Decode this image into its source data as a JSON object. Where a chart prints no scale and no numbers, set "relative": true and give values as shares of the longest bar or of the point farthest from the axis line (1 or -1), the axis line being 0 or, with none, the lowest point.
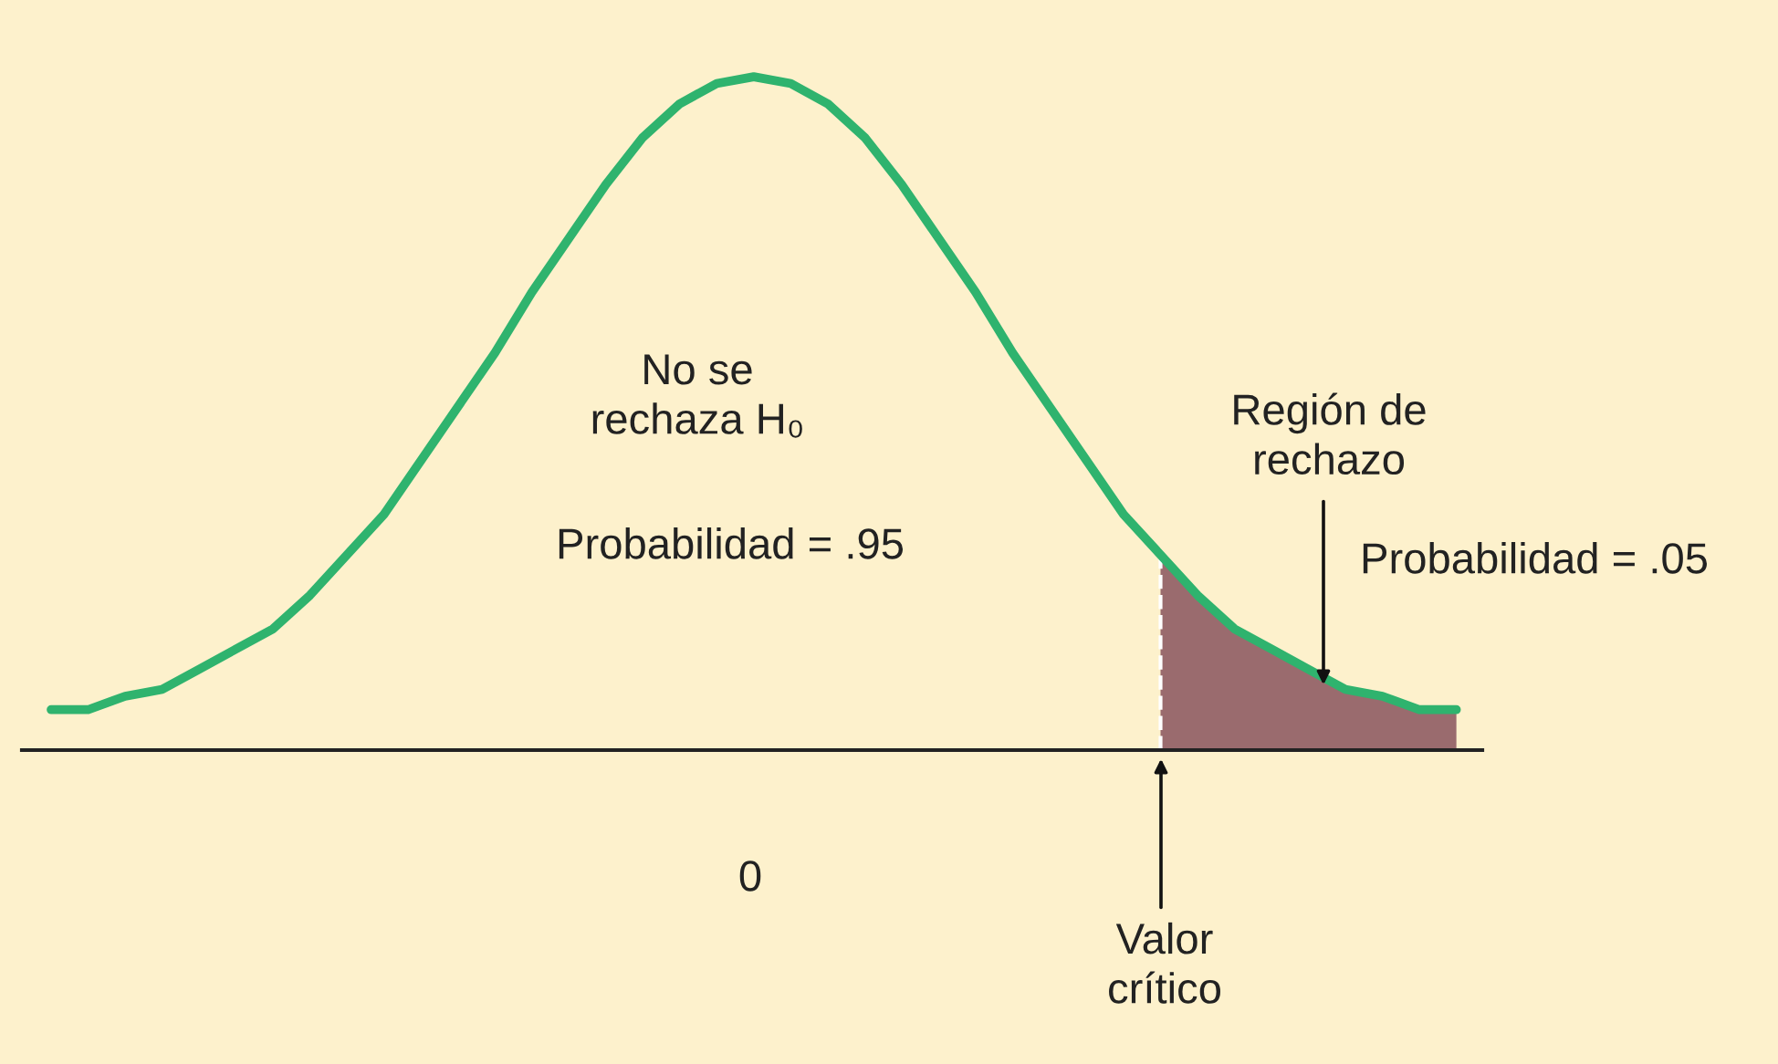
{
  "chart_data": {
    "type": "line",
    "relative": true,
    "legend": false,
    "marker": "none",
    "categories": [
      null,
      null,
      null,
      null,
      null,
      null,
      null,
      null,
      null,
      null,
      null,
      null,
      null,
      null,
      null,
      null,
      null,
      null,
      null,
      null,
      null,
      null,
      null,
      null,
      null,
      null,
      null,
      null,
      null,
      null,
      null,
      null,
      null,
      null,
      null,
      null,
      null,
      null,
      null
    ],
    "series": [
      {
        "color": "#2fb36e",
        "values": [
          0.06,
          0.06,
          0.08,
          0.09,
          0.12,
          0.15,
          0.18,
          0.23,
          0.29,
          0.35,
          0.43,
          0.51,
          0.59,
          0.68,
          0.76,
          0.84,
          0.91,
          0.96,
          0.99,
          1.0,
          0.99,
          0.96,
          0.91,
          0.84,
          0.76,
          0.68,
          0.59,
          0.51,
          0.43,
          0.35,
          0.29,
          0.23,
          0.18,
          0.15,
          0.12,
          0.09,
          0.08,
          0.06,
          0.06
        ]
      },
      {
        "type": "area",
        "color": "#9a6b6e",
        "values": [
          null,
          null,
          null,
          null,
          null,
          null,
          null,
          null,
          null,
          null,
          null,
          null,
          null,
          null,
          null,
          null,
          null,
          null,
          null,
          null,
          null,
          null,
          null,
          null,
          null,
          null,
          null,
          null,
          null,
          null,
          0.29,
          0.23,
          0.18,
          0.15,
          0.12,
          0.09,
          0.08,
          0.06,
          0.06
        ]
      }
    ],
    "annotations": [
      "No se\nrechaza H₀",
      "Probabilidad = .95",
      "Región de\nrechazo",
      "Probabilidad = .05",
      "Valor\ncrítico",
      "0"
    ]
  }
}
